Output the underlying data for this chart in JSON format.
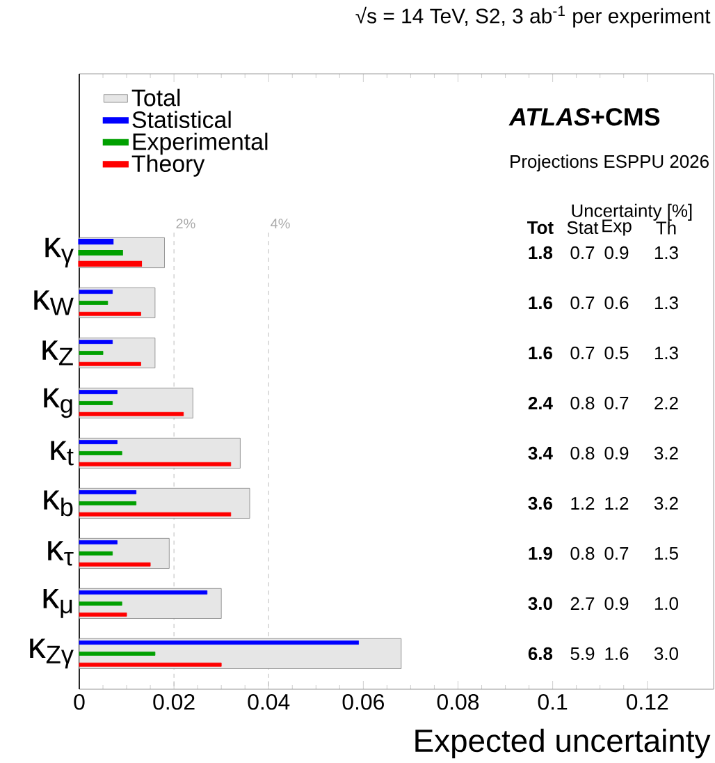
{
  "chart_data": {
    "type": "bar",
    "orientation": "horizontal",
    "title": "√s = 14 TeV, S2, 3 ab$^{-1}$ per experiment",
    "xlabel": "Expected uncertainty",
    "categories": [
      "κ$_{γ}$",
      "κ$_{W}$",
      "κ$_{Z}$",
      "κ$_{g}$",
      "κ$_{t}$",
      "κ$_{b}$",
      "κ$_{τ}$",
      "κ$_{μ}$",
      "κ$_{Zγ}$"
    ],
    "series": [
      {
        "name": "Total",
        "color": "#e6e6e6",
        "values": [
          0.018,
          0.016,
          0.016,
          0.024,
          0.034,
          0.036,
          0.019,
          0.03,
          0.068
        ]
      },
      {
        "name": "Statistical",
        "color": "#0000ff",
        "values": [
          0.007,
          0.007,
          0.007,
          0.008,
          0.008,
          0.012,
          0.008,
          0.027,
          0.059
        ]
      },
      {
        "name": "Experimental",
        "color": "#00a000",
        "values": [
          0.009,
          0.006,
          0.005,
          0.007,
          0.009,
          0.012,
          0.007,
          0.009,
          0.016
        ]
      },
      {
        "name": "Theory",
        "color": "#ff0000",
        "values": [
          0.013,
          0.013,
          0.013,
          0.022,
          0.032,
          0.032,
          0.015,
          0.01,
          0.03
        ]
      }
    ],
    "xlim": [
      0,
      0.134
    ],
    "xticks": [
      0,
      0.02,
      0.04,
      0.06,
      0.08,
      0.1,
      0.12
    ],
    "ref_lines": [
      {
        "axis": "x",
        "value": 0.02,
        "label": "2%",
        "color": "#aaaaaa",
        "line_style": "dashed"
      },
      {
        "axis": "x",
        "value": 0.04,
        "label": "4%",
        "color": "#aaaaaa",
        "line_style": "dashed"
      }
    ],
    "annotations": [
      "*ATLAS*+CMS",
      "Projections ESPPU 2026",
      "Uncertainty [%]",
      "Tot",
      "Stat",
      "Exp",
      "Th",
      "1.8",
      "0.7",
      "0.9",
      "1.3",
      "1.6",
      "0.7",
      "0.6",
      "1.3",
      "1.6",
      "0.7",
      "0.5",
      "1.3",
      "2.4",
      "0.8",
      "0.7",
      "2.2",
      "3.4",
      "0.8",
      "0.9",
      "3.2",
      "3.6",
      "1.2",
      "1.2",
      "3.2",
      "1.9",
      "0.8",
      "0.7",
      "1.5",
      "3.0",
      "2.7",
      "0.9",
      "1.0",
      "6.8",
      "5.9",
      "1.6",
      "3.0"
    ],
    "legend": "top left"
  }
}
